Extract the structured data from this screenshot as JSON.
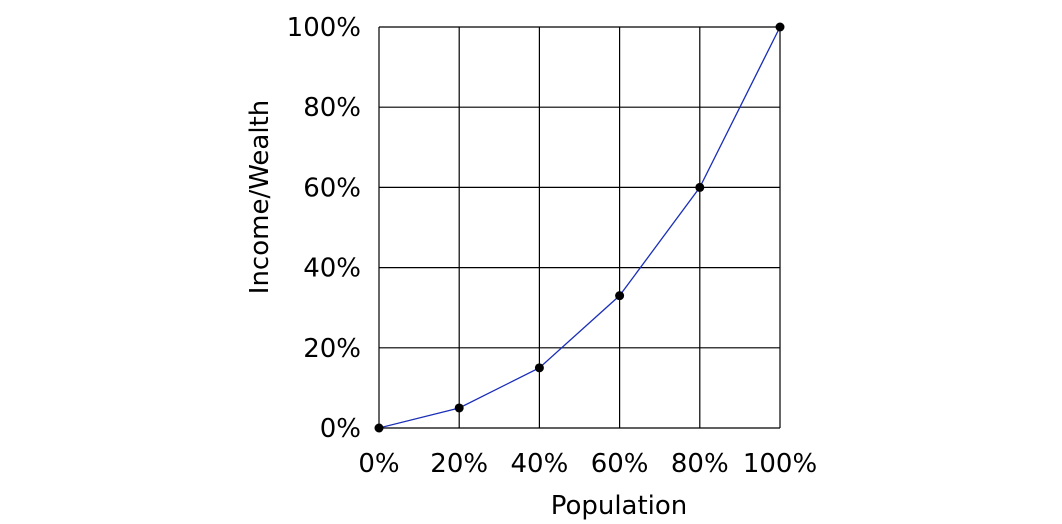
{
  "chart_data": {
    "type": "line",
    "title": "",
    "xlabel": "Population",
    "ylabel": "Income/Wealth",
    "xlim": [
      0,
      100
    ],
    "ylim": [
      0,
      100
    ],
    "x_ticks": [
      0,
      20,
      40,
      60,
      80,
      100
    ],
    "y_ticks": [
      0,
      20,
      40,
      60,
      80,
      100
    ],
    "x_tick_labels": [
      "0%",
      "20%",
      "40%",
      "60%",
      "80%",
      "100%"
    ],
    "y_tick_labels": [
      "0%",
      "20%",
      "40%",
      "60%",
      "80%",
      "100%"
    ],
    "grid": true,
    "legend": "none",
    "series": [
      {
        "color": "#1a2fb8",
        "marker_color": "#000000",
        "x": [
          0,
          20,
          40,
          60,
          80,
          100
        ],
        "y": [
          0,
          5,
          15,
          33,
          60,
          100
        ]
      }
    ]
  }
}
